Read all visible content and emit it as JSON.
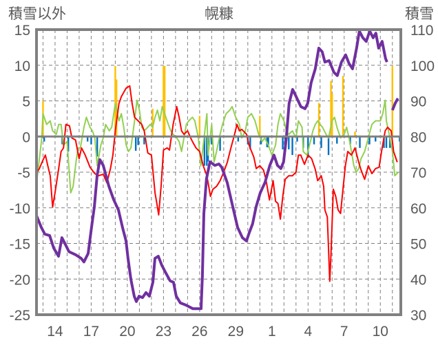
{
  "chart_data": {
    "type": "line",
    "title": "幌糠",
    "ylabel_left": "積雪以外",
    "ylabel_right": "積雪",
    "xlim": [
      12.46,
      42.7
    ],
    "ylim_left": [
      -25,
      15
    ],
    "ylim_right": [
      30,
      110
    ],
    "left_ticks": [
      "15",
      "10",
      "5",
      "0",
      "-5",
      "-10",
      "-15",
      "-20",
      "-25"
    ],
    "left_tick_values": [
      15,
      10,
      5,
      0,
      -5,
      -10,
      -15,
      -20,
      -25
    ],
    "right_ticks": [
      "110",
      "100",
      "90",
      "80",
      "70",
      "60",
      "50",
      "40",
      "30"
    ],
    "right_tick_values": [
      110,
      100,
      90,
      80,
      70,
      60,
      50,
      40,
      30
    ],
    "x_ticks": [
      "14",
      "17",
      "20",
      "23",
      "26",
      "29",
      "1",
      "4",
      "7",
      "10"
    ],
    "x_tick_values": [
      14,
      17,
      20,
      23,
      26,
      29,
      32,
      35,
      38,
      41
    ],
    "grid": true,
    "colors": {
      "red": "#ff0000",
      "green": "#92d050",
      "purple": "#7030a0",
      "orange": "#ffc000",
      "blue": "#0070c0",
      "axis": "#808080"
    },
    "series": [
      {
        "key": "green",
        "axis": "left",
        "type": "line",
        "x": [
          12.5,
          12.7,
          12.9,
          13.0,
          13.3,
          13.6,
          13.8,
          14.1,
          14.3,
          14.5,
          14.7,
          15.0,
          15.2,
          15.3,
          15.5,
          15.7,
          15.9,
          16.1,
          16.4,
          16.6,
          16.9,
          17.1,
          17.3,
          17.5,
          17.8,
          18.0,
          18.2,
          18.5,
          18.7,
          19.0,
          19.3,
          19.5,
          19.7,
          19.9,
          20.1,
          20.3,
          20.6,
          20.8,
          21.0,
          21.2,
          21.4,
          21.7,
          21.9,
          22.1,
          22.3,
          22.5,
          22.7,
          22.9,
          23.1,
          23.4,
          23.6,
          23.8,
          24.1,
          24.3,
          24.5,
          24.7,
          24.9,
          25.1,
          25.4,
          25.6,
          25.9,
          26.1,
          26.3,
          26.6,
          26.7,
          27.0,
          27.2,
          27.4,
          27.7,
          27.9,
          28.2,
          28.5,
          28.7,
          29.0,
          29.3,
          29.5,
          29.8,
          30.0,
          30.3,
          30.6,
          30.9,
          31.2,
          31.4,
          31.7,
          32.0,
          32.3,
          32.5,
          32.7,
          33.0,
          33.2,
          33.4,
          33.7,
          34.0,
          34.2,
          34.5,
          34.6,
          34.9,
          35.2,
          35.4,
          35.6,
          35.8,
          36.0,
          36.2,
          36.5,
          36.7,
          37.0,
          37.2,
          37.4,
          37.7,
          38.0,
          38.2,
          38.4,
          38.6,
          38.8,
          39.0,
          39.2,
          39.4,
          39.7,
          40.0,
          40.3,
          40.6,
          40.9,
          41.0,
          41.2,
          41.4,
          41.5,
          41.8,
          42.0,
          42.2,
          42.5
        ],
        "y": [
          -6.0,
          -3.1,
          -0.2,
          3.2,
          1.7,
          2.2,
          0.8,
          0.3,
          1.7,
          1.7,
          -1.2,
          -0.7,
          -5.5,
          -7.9,
          -7.0,
          -4.1,
          -1.6,
          -1.6,
          1.3,
          2.7,
          1.3,
          0.8,
          -0.2,
          -4.1,
          -1.2,
          -0.2,
          1.7,
          0.8,
          1.3,
          4.6,
          2.2,
          3.2,
          1.3,
          -1.2,
          -2.1,
          -1.6,
          2.2,
          5.1,
          3.7,
          1.3,
          0.8,
          1.3,
          1.7,
          1.3,
          2.7,
          3.7,
          2.2,
          4.2,
          3.2,
          1.7,
          0.8,
          0.3,
          -0.2,
          -0.7,
          -2.1,
          -0.2,
          1.7,
          2.2,
          2.7,
          2.2,
          -0.2,
          -4.1,
          -1.2,
          3.2,
          -2.6,
          1.7,
          -3.6,
          -2.1,
          0.3,
          1.7,
          3.2,
          3.7,
          4.2,
          2.7,
          1.7,
          -0.2,
          0.8,
          2.7,
          3.2,
          2.2,
          0.3,
          -0.7,
          -0.2,
          -1.2,
          -2.6,
          -1.2,
          1.7,
          3.2,
          2.2,
          0.8,
          0.3,
          0.8,
          -0.2,
          2.2,
          1.3,
          -2.1,
          -2.6,
          -0.7,
          0.8,
          1.7,
          2.2,
          1.7,
          1.3,
          0.3,
          -0.2,
          2.2,
          2.7,
          1.3,
          -0.2,
          0.3,
          1.3,
          -0.2,
          -2.1,
          -4.1,
          -5.0,
          -4.5,
          -3.1,
          -2.1,
          -0.2,
          1.7,
          2.2,
          2.2,
          2.2,
          3.2,
          5.1,
          2.2,
          -0.2,
          -2.1,
          -5.5,
          -5.0
        ]
      },
      {
        "key": "red",
        "axis": "left",
        "type": "line",
        "x": [
          12.5,
          12.7,
          13.0,
          13.2,
          13.4,
          13.6,
          13.8,
          14.0,
          14.3,
          14.5,
          14.7,
          14.9,
          15.2,
          15.4,
          15.7,
          16.0,
          16.2,
          16.5,
          16.9,
          17.3,
          17.6,
          18.0,
          18.3,
          18.6,
          18.8,
          19.0,
          19.3,
          19.5,
          19.9,
          20.2,
          20.4,
          20.6,
          20.9,
          21.2,
          21.4,
          21.7,
          22.0,
          22.3,
          22.5,
          22.6,
          22.8,
          23.0,
          23.3,
          23.5,
          23.8,
          24.1,
          24.3,
          24.5,
          24.7,
          25.0,
          25.2,
          25.4,
          25.7,
          26.0,
          26.3,
          26.6,
          26.9,
          27.1,
          27.4,
          27.7,
          28.0,
          28.3,
          28.6,
          28.9,
          29.1,
          29.3,
          29.5,
          29.9,
          30.1,
          30.5,
          30.7,
          31.0,
          31.3,
          31.5,
          31.8,
          32.1,
          32.3,
          32.5,
          32.7,
          32.9,
          33.1,
          33.4,
          33.7,
          34.0,
          34.2,
          34.4,
          34.7,
          35.0,
          35.3,
          35.6,
          35.8,
          36.1,
          36.3,
          36.4,
          36.6,
          36.8,
          36.9,
          37.1,
          37.3,
          37.5,
          37.7,
          37.9,
          38.1,
          38.3,
          38.6,
          38.9,
          39.2,
          39.4,
          39.7,
          40.0,
          40.3,
          40.6,
          40.9,
          41.1,
          41.3,
          41.4,
          41.6,
          41.9,
          42.1,
          42.4
        ],
        "y": [
          -5.0,
          -4.5,
          -3.3,
          -2.6,
          -4.1,
          -5.5,
          -9.9,
          -7.9,
          -4.5,
          -2.1,
          -1.6,
          1.7,
          1.5,
          -0.2,
          -0.5,
          -3.1,
          -1.6,
          -2.6,
          -4.3,
          -5.2,
          -5.5,
          -5.3,
          -6.5,
          -4.5,
          -2.6,
          0.8,
          4.6,
          5.6,
          6.8,
          7.1,
          4.6,
          2.7,
          2.2,
          1.7,
          0.8,
          -2.3,
          -2.6,
          -7.9,
          -9.9,
          -11.0,
          -7.0,
          -1.9,
          -1.6,
          -1.9,
          1.7,
          4.2,
          2.7,
          0.8,
          0.3,
          0.8,
          0,
          -0.7,
          -1.6,
          -2.1,
          -4.1,
          -5.5,
          -8.4,
          -7.4,
          -7.0,
          -6.2,
          -5.0,
          -3.6,
          -1.6,
          0.3,
          1.7,
          0.8,
          1.0,
          0.3,
          -1.2,
          -2.9,
          -4.5,
          -4.1,
          -4.7,
          -6.0,
          -8.9,
          -6.2,
          -9.1,
          -9.4,
          -11.6,
          -8.4,
          -6.0,
          -5.5,
          -5.5,
          -5.0,
          -2.6,
          -2.6,
          -3.9,
          -2.6,
          -3.1,
          -4.6,
          -6.2,
          -5.5,
          -7.0,
          -10.3,
          -11.3,
          -20.3,
          -16.8,
          -7.4,
          -8.4,
          -10.3,
          -10.8,
          -7.4,
          -4.1,
          -2.1,
          -2.6,
          -1.6,
          -3.6,
          -4.7,
          -6.0,
          -4.1,
          -5.2,
          -4.5,
          -4.3,
          -2.1,
          -0.2,
          0.8,
          1.3,
          0.8,
          -2.1,
          -3.6
        ]
      },
      {
        "key": "purple",
        "axis": "right",
        "type": "line",
        "x": [
          12.46,
          12.86,
          13.15,
          13.55,
          13.89,
          14.29,
          14.57,
          14.86,
          15.15,
          15.72,
          16.17,
          16.4,
          16.75,
          17.03,
          17.26,
          17.49,
          17.72,
          18.0,
          18.46,
          18.86,
          19.26,
          19.6,
          19.89,
          20.06,
          20.29,
          20.57,
          20.75,
          20.97,
          21.26,
          21.55,
          21.83,
          22.12,
          22.29,
          22.57,
          22.86,
          23.15,
          23.55,
          23.83,
          24.06,
          24.4,
          24.86,
          25.43,
          26.12,
          26.23,
          26.35,
          26.57,
          26.86,
          27.26,
          27.6,
          27.83,
          28.29,
          28.75,
          29.15,
          29.55,
          29.89,
          30.12,
          30.4,
          30.69,
          31.03,
          31.43,
          31.83,
          32.17,
          32.46,
          32.75,
          32.97,
          33.2,
          33.43,
          33.72,
          34.0,
          34.4,
          34.75,
          34.97,
          35.26,
          35.6,
          35.89,
          36.17,
          36.4,
          36.75,
          37.15,
          37.43,
          37.77,
          38.12,
          38.4,
          38.69,
          39.03,
          39.26,
          39.55,
          39.83,
          40.12,
          40.4,
          40.63,
          40.86,
          41.15,
          41.43,
          41.55,
          41.8,
          42.0,
          42.23,
          42.46
        ],
        "y": [
          57.8,
          54.5,
          52.6,
          52.2,
          48.7,
          46.4,
          51.6,
          49.7,
          47.7,
          46.8,
          45.8,
          44.8,
          47.2,
          54.5,
          60.3,
          69.0,
          73.5,
          71.9,
          66.1,
          62.3,
          59.4,
          54.5,
          50.7,
          45.8,
          40.0,
          35.2,
          33.7,
          35.2,
          34.8,
          36.2,
          35.2,
          39.1,
          45.8,
          46.4,
          43.9,
          42.0,
          39.5,
          39.1,
          35.2,
          33.3,
          32.7,
          31.7,
          31.7,
          41.0,
          58.4,
          68.1,
          72.9,
          71.9,
          72.3,
          71.4,
          67.1,
          60.3,
          54.5,
          51.6,
          50.7,
          53.0,
          55.5,
          60.3,
          64.2,
          67.1,
          71.9,
          74.8,
          71.9,
          71.0,
          72.9,
          79.7,
          89.3,
          93.2,
          91.3,
          88.4,
          87.8,
          89.3,
          95.1,
          99.0,
          104.8,
          103.8,
          100.9,
          101.3,
          98.0,
          97.1,
          100.9,
          102.9,
          100.5,
          99.0,
          104.8,
          109.6,
          107.7,
          106.7,
          109.6,
          107.7,
          109.0,
          104.8,
          106.7,
          101.9,
          100.9,
          null,
          87.4,
          89.3,
          90.7
        ]
      },
      {
        "key": "orange",
        "axis": "left",
        "type": "bar",
        "x": [
          13.0,
          19.0,
          19.1,
          22.1,
          23.0,
          23.1,
          26.0,
          31.0,
          35.9,
          36.9,
          37.0,
          37.9,
          38.9,
          42.0
        ],
        "y": [
          5.0,
          9.9,
          8.0,
          3.9,
          9.9,
          9.9,
          2.9,
          2.9,
          4.7,
          7.8,
          6.0,
          8.5,
          0.7,
          9.9
        ]
      },
      {
        "key": "blue",
        "axis": "left",
        "type": "bar",
        "x": [
          13.1,
          14.6,
          15.1,
          16.7,
          17.0,
          17.5,
          20.7,
          20.9,
          21.4,
          26.4,
          26.6,
          26.7,
          27.0,
          27.7,
          29.2,
          30.0,
          30.2,
          31.1,
          31.6,
          31.7,
          32.9,
          33.1,
          33.4,
          33.7,
          34.1,
          34.6,
          35.0,
          35.5,
          36.1,
          36.7,
          37.4,
          38.5,
          39.3,
          40.1,
          40.6,
          41.3,
          41.5,
          41.8,
          42.6
        ],
        "y": [
          -0.7,
          -1.1,
          -2.1,
          -0.7,
          -1.1,
          -2.8,
          -2.0,
          -1.2,
          -1.1,
          -4.1,
          -4.1,
          -3.5,
          -1.1,
          -2.0,
          -0.7,
          -1.1,
          -1.8,
          -1.1,
          -1.5,
          -1.5,
          -1.8,
          -1.8,
          -1.8,
          -2.6,
          -0.7,
          -1.6,
          -3.0,
          -1.1,
          -1.6,
          -2.6,
          -1.0,
          -1.1,
          -1.6,
          -1.1,
          -0.7,
          -1.6,
          -1.6,
          -1.6,
          -0.7
        ]
      }
    ]
  }
}
